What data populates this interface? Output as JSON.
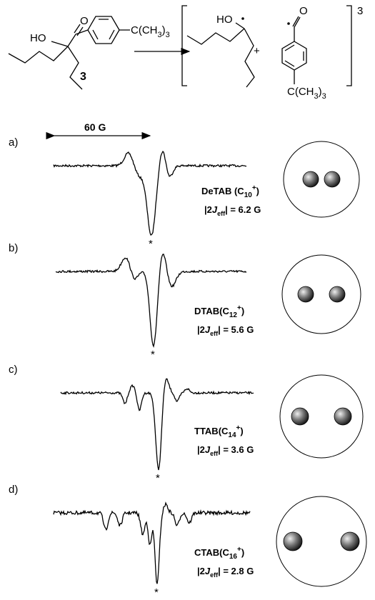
{
  "scheme": {
    "reactant": {
      "hydroxyl": "HO",
      "oxygen": "O",
      "tbutyl": {
        "main": "C(CH",
        "sub1": "3",
        "close": ")",
        "sub2": "3"
      }
    },
    "compound_label": "3",
    "products": {
      "hydroxyl": "HO",
      "plus": "+",
      "oxygen": "O",
      "tbutyl": {
        "main": "C(CH",
        "sub1": "3",
        "close": ")",
        "sub2": "3"
      }
    },
    "multiplicity": "3"
  },
  "scale": {
    "label": "60 G"
  },
  "spectra": [
    {
      "panel": "a)",
      "surfactant": {
        "name": "DeTAB (C",
        "chain": "10",
        "charge": "+",
        "close": ")"
      },
      "coupling": {
        "prefix": "|2",
        "symbol": "J",
        "sub": "eff",
        "suffix": "| = 6.2 G"
      },
      "marker": "*"
    },
    {
      "panel": "b)",
      "surfactant": {
        "name": "DTAB(C",
        "chain": "12",
        "charge": "+",
        "close": ")"
      },
      "coupling": {
        "prefix": "|2",
        "symbol": "J",
        "sub": "eff",
        "suffix": "| = 5.6 G"
      },
      "marker": "*"
    },
    {
      "panel": "c)",
      "surfactant": {
        "name": "TTAB(C",
        "chain": "14",
        "charge": "+",
        "close": ")"
      },
      "coupling": {
        "prefix": "|2",
        "symbol": "J",
        "sub": "eff",
        "suffix": "| = 3.6 G"
      },
      "marker": "*"
    },
    {
      "panel": "d)",
      "surfactant": {
        "name": "CTAB(C",
        "chain": "16",
        "charge": "+",
        "close": ")"
      },
      "coupling": {
        "prefix": "|2",
        "symbol": "J",
        "sub": "eff",
        "suffix": "| = 2.8 G"
      },
      "marker": "*"
    }
  ]
}
